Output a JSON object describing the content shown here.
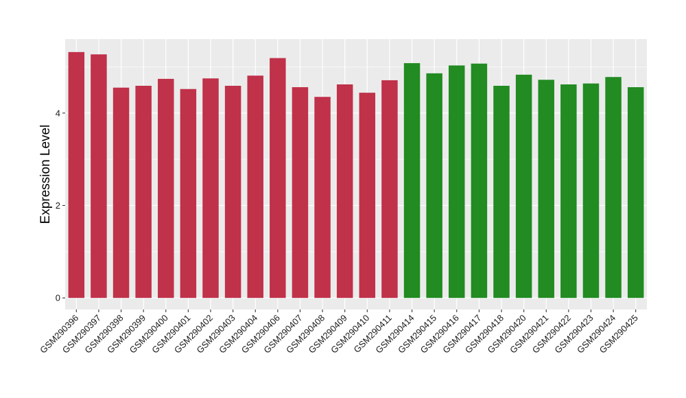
{
  "chart_data": {
    "type": "bar",
    "title": "",
    "xlabel": "",
    "ylabel": "Expression Level",
    "ylim": [
      -0.25,
      5.6
    ],
    "yticks": [
      0,
      2,
      4
    ],
    "grid": true,
    "legend": "none",
    "colors": {
      "group1": "#c0314a",
      "group2": "#228b22",
      "panel_bg": "#ebebeb",
      "grid": "#ffffff"
    },
    "categories": [
      "GSM290396",
      "GSM290397",
      "GSM290398",
      "GSM290399",
      "GSM290400",
      "GSM290401",
      "GSM290402",
      "GSM290403",
      "GSM290404",
      "GSM290406",
      "GSM290407",
      "GSM290408",
      "GSM290409",
      "GSM290410",
      "GSM290411",
      "GSM290414",
      "GSM290415",
      "GSM290416",
      "GSM290417",
      "GSM290418",
      "GSM290420",
      "GSM290421",
      "GSM290422",
      "GSM290423",
      "GSM290424",
      "GSM290425"
    ],
    "values": [
      5.32,
      5.27,
      4.55,
      4.59,
      4.74,
      4.52,
      4.75,
      4.59,
      4.81,
      5.19,
      4.56,
      4.35,
      4.62,
      4.44,
      4.71,
      5.08,
      4.86,
      5.03,
      5.07,
      4.59,
      4.83,
      4.72,
      4.62,
      4.64,
      4.78,
      4.56
    ],
    "groups": [
      1,
      1,
      1,
      1,
      1,
      1,
      1,
      1,
      1,
      1,
      1,
      1,
      1,
      1,
      1,
      2,
      2,
      2,
      2,
      2,
      2,
      2,
      2,
      2,
      2,
      2
    ]
  }
}
